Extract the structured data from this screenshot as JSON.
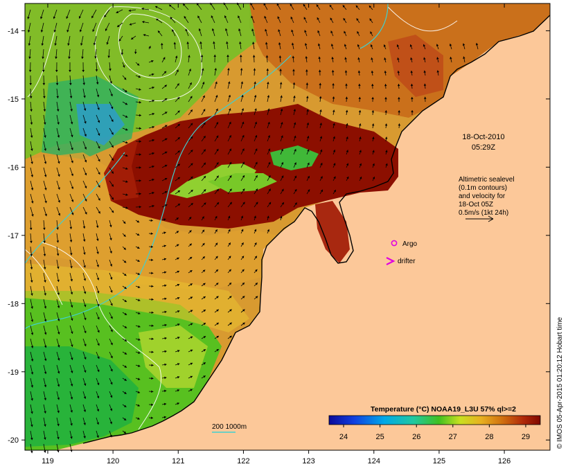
{
  "map": {
    "x_ticks": [
      "119",
      "120",
      "121",
      "122",
      "123",
      "124",
      "125",
      "126"
    ],
    "y_ticks": [
      "-14",
      "-15",
      "-16",
      "-17",
      "-18",
      "-19",
      "-20"
    ],
    "lon_range": [
      118.65,
      126.7
    ],
    "lat_range": [
      -20.15,
      -13.6
    ]
  },
  "annotation": {
    "date": "18-Oct-2010",
    "time": "05:29Z",
    "altimetry_lines": [
      "Altimetric sealevel",
      "(0.1m contours)",
      "and velocity for",
      "18-Oct 05Z",
      "0.5m/s (1kt 24h)"
    ]
  },
  "legend": {
    "argo_label": "Argo",
    "drifter_label": "drifter",
    "bathymetry_label": "200  1000m"
  },
  "colorbar": {
    "title": "Temperature (°C) NOAA19_L3U 57% ql>=2",
    "ticks": [
      "24",
      "25",
      "26",
      "27",
      "28",
      "29"
    ],
    "min": 23.6,
    "max": 29.4
  },
  "credit": "© IMOS 05-Apr-2015 01:20:12 Hobart time",
  "colors": {
    "land": "#fcc899",
    "hot": "#8c0f00",
    "argo": "#e000e0",
    "bathymetry": "#3fd0d0"
  }
}
